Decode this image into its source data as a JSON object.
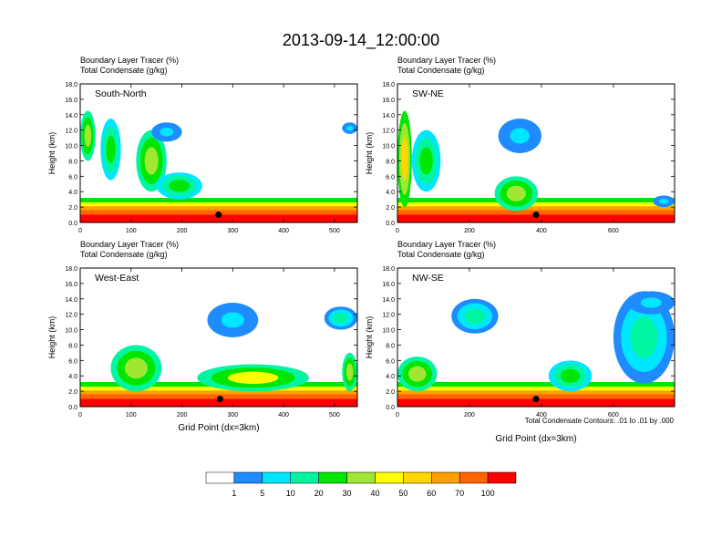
{
  "chart_data": {
    "type": "heatmap",
    "title": "2013-09-14_12:00:00",
    "footnote": "Total Condensate Contours: .01 to .01 by .000",
    "colorbar": {
      "colors": [
        "#ffffff",
        "#1e8cff",
        "#00e6ff",
        "#00f5a0",
        "#00e600",
        "#a0e632",
        "#ffff00",
        "#ffd700",
        "#ffa000",
        "#ff6400",
        "#ff0000"
      ],
      "labels": [
        "1",
        "5",
        "10",
        "20",
        "30",
        "40",
        "50",
        "60",
        "70",
        "100"
      ]
    },
    "panels": [
      {
        "name": "South-North",
        "line1": "Boundary Layer Tracer   (%)",
        "line2": "Total Condensate   (g/kg)",
        "ylabel": "Height (km)",
        "xlabel": "",
        "xlim": [
          0,
          545
        ],
        "ylim": [
          0,
          18
        ],
        "xticks": [
          "0",
          "100",
          "200",
          "300",
          "400",
          "500"
        ],
        "yticks": [
          "0.0",
          "2.0",
          "4.0",
          "6.0",
          "8.0",
          "10.0",
          "12.0",
          "14.0",
          "16.0",
          "18.0"
        ],
        "marker": {
          "x": 272,
          "y": 1.0
        },
        "cloud_blobs": [
          {
            "x": 0,
            "y": 8.0,
            "w": 30,
            "h": 6.5,
            "v": 30
          },
          {
            "x": 40,
            "y": 5.5,
            "w": 40,
            "h": 8,
            "v": 20
          },
          {
            "x": 110,
            "y": 4.0,
            "w": 60,
            "h": 8,
            "v": 30
          },
          {
            "x": 150,
            "y": 3.0,
            "w": 90,
            "h": 3.5,
            "v": 20
          },
          {
            "x": 140,
            "y": 10.5,
            "w": 60,
            "h": 2.5,
            "v": 5
          },
          {
            "x": 515,
            "y": 11.5,
            "w": 30,
            "h": 1.5,
            "v": 5
          }
        ]
      },
      {
        "name": "SW-NE",
        "line1": "Boundary Layer Tracer   (%)",
        "line2": "Total Condensate   (g/kg)",
        "ylabel": "Height (km)",
        "xlabel": "",
        "xlim": [
          0,
          770
        ],
        "ylim": [
          0,
          18
        ],
        "xticks": [
          "0",
          "200",
          "400",
          "600"
        ],
        "yticks": [
          "0.0",
          "2.0",
          "4.0",
          "6.0",
          "8.0",
          "10.0",
          "12.0",
          "14.0",
          "16.0",
          "18.0"
        ],
        "marker": {
          "x": 385,
          "y": 1.0
        },
        "cloud_blobs": [
          {
            "x": 0,
            "y": 2.0,
            "w": 40,
            "h": 12.5,
            "v": 50
          },
          {
            "x": 40,
            "y": 4.0,
            "w": 80,
            "h": 8,
            "v": 20
          },
          {
            "x": 270,
            "y": 1.5,
            "w": 120,
            "h": 4.5,
            "v": 30
          },
          {
            "x": 280,
            "y": 9.0,
            "w": 120,
            "h": 4.5,
            "v": 5
          },
          {
            "x": 710,
            "y": 2.0,
            "w": 60,
            "h": 1.5,
            "v": 5
          }
        ]
      },
      {
        "name": "West-East",
        "line1": "Boundary Layer Tracer   (%)",
        "line2": "Total Condensate   (g/kg)",
        "ylabel": "Height (km)",
        "xlabel": "Grid Point (dx=3km)",
        "xlim": [
          0,
          545
        ],
        "ylim": [
          0,
          18
        ],
        "xticks": [
          "0",
          "100",
          "200",
          "300",
          "400",
          "500"
        ],
        "yticks": [
          "0.0",
          "2.0",
          "4.0",
          "6.0",
          "8.0",
          "10.0",
          "12.0",
          "14.0",
          "16.0",
          "18.0"
        ],
        "marker": {
          "x": 275,
          "y": 1.0
        },
        "cloud_blobs": [
          {
            "x": 60,
            "y": 2.0,
            "w": 100,
            "h": 6,
            "v": 30
          },
          {
            "x": 230,
            "y": 2.0,
            "w": 220,
            "h": 3.5,
            "v": 40
          },
          {
            "x": 250,
            "y": 9.0,
            "w": 100,
            "h": 4.5,
            "v": 5
          },
          {
            "x": 480,
            "y": 10.0,
            "w": 65,
            "h": 3,
            "v": 10
          },
          {
            "x": 515,
            "y": 2.0,
            "w": 30,
            "h": 5,
            "v": 30
          }
        ]
      },
      {
        "name": "NW-SE",
        "line1": "Boundary Layer Tracer   (%)",
        "line2": "Total Condensate   (g/kg)",
        "ylabel": "Height (km)",
        "xlabel": "Grid Point (dx=3km)",
        "xlim": [
          0,
          770
        ],
        "ylim": [
          0,
          18
        ],
        "xticks": [
          "0",
          "200",
          "400",
          "600"
        ],
        "yticks": [
          "0.0",
          "2.0",
          "4.0",
          "6.0",
          "8.0",
          "10.0",
          "12.0",
          "14.0",
          "16.0",
          "18.0"
        ],
        "marker": {
          "x": 385,
          "y": 1.0
        },
        "cloud_blobs": [
          {
            "x": 0,
            "y": 2.0,
            "w": 110,
            "h": 4.5,
            "v": 30
          },
          {
            "x": 150,
            "y": 9.5,
            "w": 130,
            "h": 4.5,
            "v": 10
          },
          {
            "x": 600,
            "y": 3.0,
            "w": 170,
            "h": 12,
            "v": 10
          },
          {
            "x": 640,
            "y": 12.0,
            "w": 130,
            "h": 3,
            "v": 5
          },
          {
            "x": 420,
            "y": 2.0,
            "w": 120,
            "h": 4,
            "v": 20
          }
        ]
      }
    ]
  }
}
